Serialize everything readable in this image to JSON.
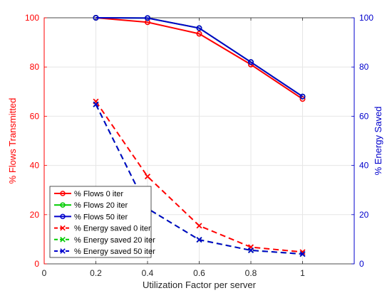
{
  "chart_data": {
    "type": "line",
    "title": "",
    "xlabel": "Utilization Factor per server",
    "ylabel_left": "% Flows Transmitted",
    "ylabel_right": "% Energy Saved",
    "xlim": [
      0,
      1.2
    ],
    "ylim_left": [
      0,
      100
    ],
    "ylim_right": [
      0,
      100
    ],
    "x_ticks": [
      "0",
      "0.2",
      "0.4",
      "0.6",
      "0.8",
      "1"
    ],
    "y_ticks_left": [
      "0",
      "20",
      "40",
      "60",
      "80",
      "100"
    ],
    "y_ticks_right": [
      "0",
      "20",
      "40",
      "60",
      "80",
      "100"
    ],
    "grid": true,
    "legend_position": "bottom-left",
    "colors": {
      "left_axis": "#ff0000",
      "right_axis": "#0000cc",
      "red": "#ff0000",
      "green": "#00cc00",
      "blue": "#0000cc"
    },
    "x": [
      0.2,
      0.4,
      0.6,
      0.8,
      1.0
    ],
    "series": [
      {
        "name": "% Flows 0 iter",
        "axis": "left",
        "color": "#ff0000",
        "marker": "o",
        "dash": false,
        "values": [
          100,
          98.2,
          93.5,
          81,
          67
        ]
      },
      {
        "name": "% Flows 20 iter",
        "axis": "left",
        "color": "#00cc00",
        "marker": "o",
        "dash": false,
        "values": [
          100,
          99.9,
          95.8,
          82,
          68
        ]
      },
      {
        "name": "% Flows 50 iter",
        "axis": "left",
        "color": "#0000cc",
        "marker": "o",
        "dash": false,
        "values": [
          100,
          99.9,
          95.8,
          82,
          68
        ]
      },
      {
        "name": "% Energy saved 0 iter",
        "axis": "right",
        "color": "#ff0000",
        "marker": "x",
        "dash": true,
        "values": [
          66,
          35.5,
          15.5,
          6.8,
          4.8
        ]
      },
      {
        "name": "% Energy saved 20 iter",
        "axis": "right",
        "color": "#00cc00",
        "marker": "x",
        "dash": true,
        "values": [
          64.8,
          22.5,
          9.8,
          5.5,
          4
        ]
      },
      {
        "name": "% Energy saved 50 iter",
        "axis": "right",
        "color": "#0000cc",
        "marker": "x",
        "dash": true,
        "values": [
          64.8,
          22.5,
          9.8,
          5.5,
          4
        ]
      }
    ]
  }
}
